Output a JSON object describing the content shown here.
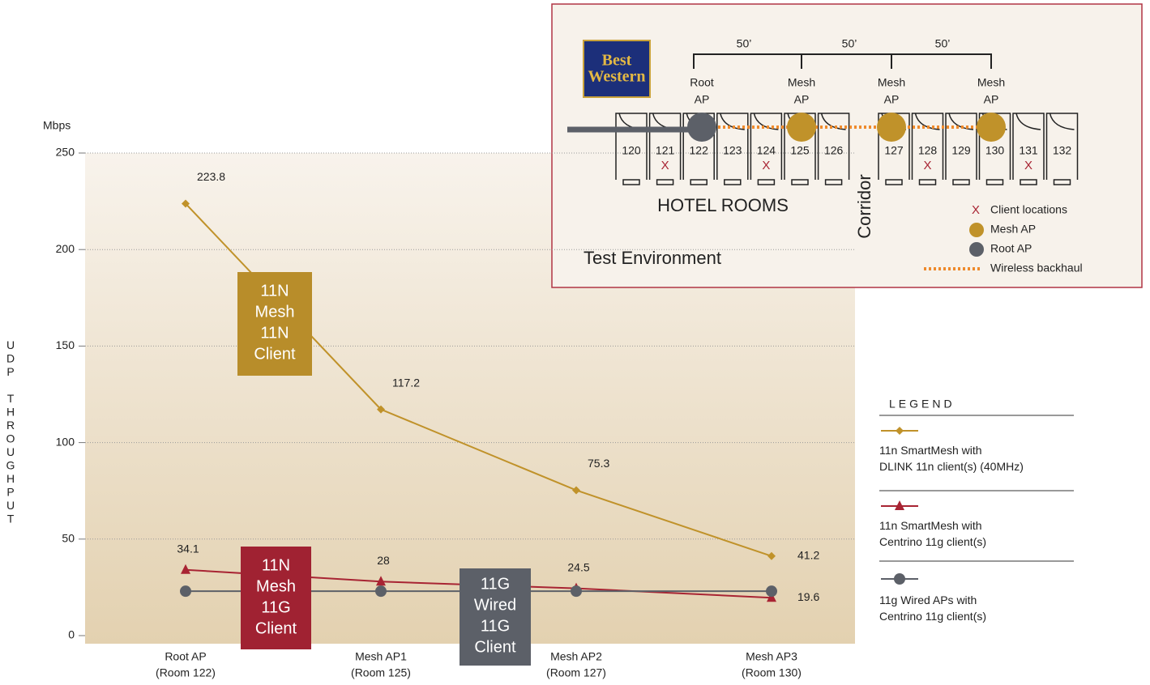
{
  "chart_data": {
    "type": "line",
    "y_unit": "Mbps",
    "ylabel": "UDP THROUGHPUT",
    "categories": [
      "Root AP",
      "Mesh AP1",
      "Mesh AP2",
      "Mesh AP3"
    ],
    "category_notes": [
      "(Room 122)",
      "(Room 125)",
      "(Room 127)",
      "(Room 130)"
    ],
    "series": [
      {
        "name": "11n SmartMesh with\nDLINK 11n client(s) (40MHz)",
        "color": "#c0922a",
        "marker": "diamond",
        "labels": true,
        "values": [
          223.8,
          117.2,
          75.3,
          41.2
        ]
      },
      {
        "name": "11n SmartMesh with\nCentrino 11g client(s)",
        "color": "#a82433",
        "marker": "triangle",
        "labels": true,
        "values": [
          34.1,
          28,
          24.5,
          19.6
        ]
      },
      {
        "name": "11g Wired APs with\nCentrino 11g client(s)",
        "color": "#5c6068",
        "marker": "circle",
        "labels": false,
        "values": [
          23,
          23,
          23,
          23
        ]
      }
    ],
    "ylim": [
      0,
      250
    ],
    "yticks": [
      0,
      50,
      100,
      150,
      200,
      250
    ],
    "grid": true,
    "legend_title": "LEGEND",
    "annotations": [
      {
        "lines": [
          "11N",
          "Mesh",
          "11N",
          "Client"
        ],
        "color": "#b88d2a"
      },
      {
        "lines": [
          "11N",
          "Mesh",
          "11G",
          "Client"
        ],
        "color": "#a02232"
      },
      {
        "lines": [
          "11G",
          "Wired",
          "11G",
          "Client"
        ],
        "color": "#5c6068"
      }
    ]
  },
  "inset": {
    "title": "Test Environment",
    "logo": [
      "Best",
      "Western"
    ],
    "distances": [
      "50’",
      "50’",
      "50’"
    ],
    "ap_labels": [
      [
        "Root",
        "AP"
      ],
      [
        "Mesh",
        "AP"
      ],
      [
        "Mesh",
        "AP"
      ],
      [
        "Mesh",
        "AP"
      ]
    ],
    "rooms": [
      "120",
      "121",
      "122",
      "123",
      "124",
      "125",
      "126",
      "127",
      "128",
      "129",
      "130",
      "131",
      "132"
    ],
    "client_marker": "X",
    "rooms_label": "HOTEL ROOMS",
    "corridor": "Corridor",
    "legend": [
      "Client locations",
      "Mesh AP",
      "Root AP",
      "Wireless backhaul"
    ]
  }
}
